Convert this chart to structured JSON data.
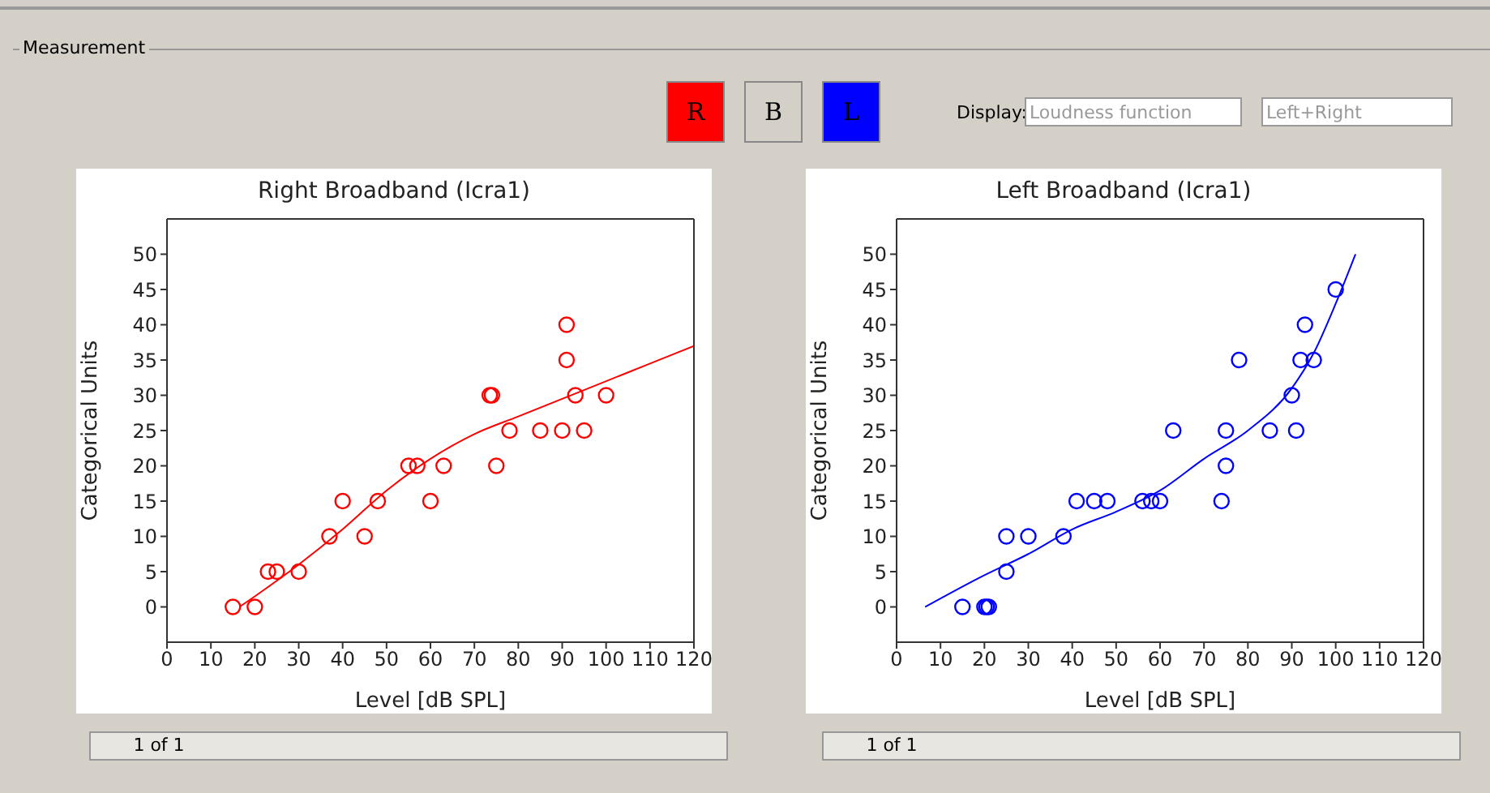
{
  "chart_data": [
    {
      "type": "scatter",
      "title": "Right Broadband (Icra1)",
      "xlabel": "Level [dB SPL]",
      "ylabel": "Categorical Units",
      "xlim": [
        0,
        120
      ],
      "ylim": [
        -5,
        55
      ],
      "xticks": [
        0,
        10,
        20,
        30,
        40,
        50,
        60,
        70,
        80,
        90,
        100,
        110,
        120
      ],
      "yticks": [
        0,
        5,
        10,
        15,
        20,
        25,
        30,
        35,
        40,
        45,
        50
      ],
      "annotations": [
        "Measurement",
        "R",
        "B",
        "L",
        "Display:",
        "Loudness function",
        "Left+Right",
        "1 of 1"
      ],
      "series": [
        {
          "marker": "circle",
          "color": "#ff0000",
          "x": [
            15,
            20,
            23,
            25,
            30,
            37,
            40,
            45,
            48,
            55,
            57,
            60,
            63,
            73.5,
            74,
            75,
            78,
            85,
            90,
            91,
            91,
            93,
            95,
            100
          ],
          "values": [
            0,
            0,
            5,
            5,
            5,
            10,
            15,
            10,
            15,
            20,
            20,
            15,
            20,
            30,
            30,
            20,
            25,
            25,
            25,
            40,
            35,
            30,
            25,
            30
          ]
        },
        {
          "type": "line",
          "marker": "none",
          "color": "#ff0000",
          "x": [
            16.5,
            20,
            30,
            40,
            50,
            60,
            70,
            80,
            90,
            100,
            110,
            120
          ],
          "values": [
            0,
            1.5,
            6,
            11,
            16.5,
            21,
            24.5,
            27,
            29.5,
            32,
            34.5,
            37
          ]
        }
      ]
    },
    {
      "type": "scatter",
      "title": "Left Broadband (Icra1)",
      "xlabel": "Level [dB SPL]",
      "ylabel": "Categorical Units",
      "xlim": [
        0,
        120
      ],
      "ylim": [
        -5,
        55
      ],
      "xticks": [
        0,
        10,
        20,
        30,
        40,
        50,
        60,
        70,
        80,
        90,
        100,
        110,
        120
      ],
      "yticks": [
        0,
        5,
        10,
        15,
        20,
        25,
        30,
        35,
        40,
        45,
        50
      ],
      "annotations": [
        "1 of 1"
      ],
      "series": [
        {
          "marker": "circle",
          "color": "#0000ff",
          "x": [
            15,
            20,
            20.5,
            21,
            25,
            25,
            30,
            38,
            41,
            45,
            48,
            56,
            58,
            60,
            63,
            74,
            75,
            75,
            78,
            85,
            90,
            91,
            92,
            93,
            95,
            100
          ],
          "values": [
            0,
            0,
            0,
            0,
            10,
            5,
            10,
            10,
            15,
            15,
            15,
            15,
            15,
            15,
            25,
            15,
            25,
            20,
            35,
            25,
            30,
            25,
            35,
            40,
            35,
            45
          ]
        },
        {
          "type": "line",
          "marker": "none",
          "color": "#0000ff",
          "x": [
            6.5,
            20,
            30,
            40,
            50,
            60,
            70,
            80,
            90,
            95,
            100,
            104.5
          ],
          "values": [
            0,
            4.5,
            7.5,
            11,
            13.5,
            16.5,
            21,
            25,
            31,
            36,
            43,
            50
          ]
        }
      ]
    }
  ]
}
